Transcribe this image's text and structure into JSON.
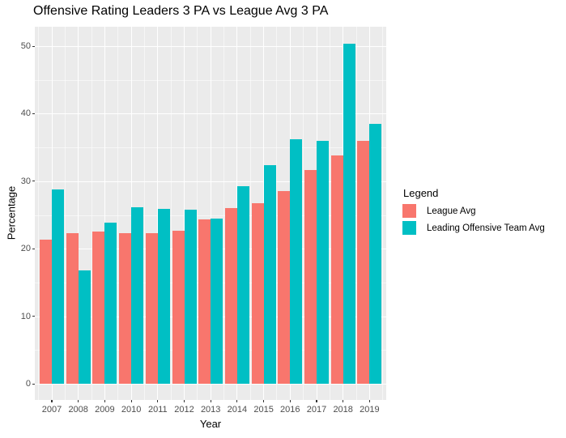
{
  "title": "Offensive Rating Leaders 3 PA vs League Avg 3 PA",
  "legend": {
    "title": "Legend",
    "items": [
      {
        "label": "League Avg",
        "color": "#F8766D"
      },
      {
        "label": "Leading Offensive Team Avg",
        "color": "#00BFC4"
      }
    ]
  },
  "colors": {
    "panel_background": "#EBEBEB",
    "grid_major": "#FFFFFF",
    "league_avg": "#F8766D",
    "leading_team": "#00BFC4",
    "axis_text": "#4D4D4D"
  },
  "chart_data": {
    "type": "bar",
    "title": "Offensive Rating Leaders 3 PA vs League Avg 3 PA",
    "categories": [
      "2007",
      "2008",
      "2009",
      "2010",
      "2011",
      "2012",
      "2013",
      "2014",
      "2015",
      "2016",
      "2017",
      "2018",
      "2019"
    ],
    "series": [
      {
        "name": "League Avg",
        "color": "#F8766D",
        "values": [
          21.4,
          22.3,
          22.5,
          22.3,
          22.3,
          22.7,
          24.3,
          26.0,
          26.8,
          28.6,
          31.7,
          33.8,
          36.0
        ]
      },
      {
        "name": "Leading Offensive Team Avg",
        "color": "#00BFC4",
        "values": [
          28.8,
          16.8,
          23.9,
          26.1,
          25.9,
          25.8,
          24.5,
          29.3,
          32.4,
          36.2,
          36.0,
          50.4,
          38.5
        ]
      }
    ],
    "xlabel": "Year",
    "ylabel": "Percentage",
    "ylim": [
      0,
      52.8
    ],
    "yticks": [
      0,
      10,
      20,
      30,
      40,
      50
    ],
    "yticks_minor": [
      5,
      15,
      25,
      35,
      45
    ],
    "grid": true,
    "legend_title": "Legend",
    "legend_position": "right",
    "bar_layout": "dodged"
  }
}
